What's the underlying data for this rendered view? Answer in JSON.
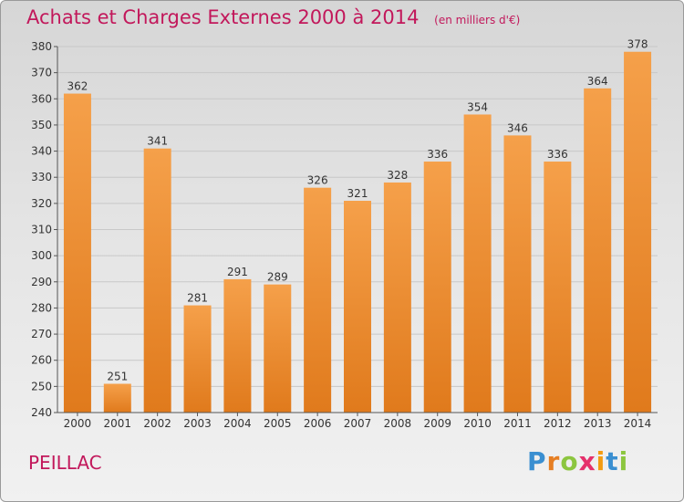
{
  "title": "Achats et Charges Externes 2000 à 2014",
  "unit": "(en milliers d'€)",
  "commune": "PEILLAC",
  "logo": {
    "text": "Proxiti",
    "letters": [
      {
        "ch": "P",
        "color": "#3a8fd1"
      },
      {
        "ch": "r",
        "color": "#e67e22"
      },
      {
        "ch": "o",
        "color": "#8cc63f"
      },
      {
        "ch": "x",
        "color": "#e5316b"
      },
      {
        "ch": "i",
        "color": "#f39c12"
      },
      {
        "ch": "t",
        "color": "#3a8fd1"
      },
      {
        "ch": "i",
        "color": "#8cc63f"
      }
    ]
  },
  "chart_data": {
    "type": "bar",
    "categories": [
      "2000",
      "2001",
      "2002",
      "2003",
      "2004",
      "2005",
      "2006",
      "2007",
      "2008",
      "2009",
      "2010",
      "2011",
      "2012",
      "2013",
      "2014"
    ],
    "values": [
      362,
      251,
      341,
      281,
      291,
      289,
      326,
      321,
      328,
      336,
      354,
      346,
      336,
      364,
      378
    ],
    "ylim": [
      240,
      380
    ],
    "yticks": [
      240,
      250,
      260,
      270,
      280,
      290,
      300,
      310,
      320,
      330,
      340,
      350,
      360,
      370,
      380
    ],
    "grid": true,
    "bar_color_top": "#f5a04a",
    "bar_color_bottom": "#e07a1c"
  }
}
